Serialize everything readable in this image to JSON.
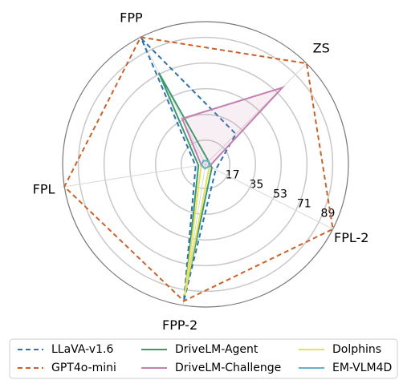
{
  "chart_data": {
    "type": "radar",
    "axes": [
      "FPP",
      "ZS",
      "FPL-2",
      "FPP-2",
      "FPL"
    ],
    "ylim": [
      0,
      100
    ],
    "yticks": [
      17,
      35,
      53,
      71,
      89
    ],
    "grid": true,
    "legend": "bottom",
    "series": [
      {
        "name": "LLaVA-v1.6",
        "color": "#2a72b0",
        "linestyle": "dashed",
        "fill": false,
        "values": [
          99,
          30,
          8,
          97,
          7
        ]
      },
      {
        "name": "GPT4o-mini",
        "color": "#c8622a",
        "linestyle": "dashed",
        "fill": false,
        "values": [
          100,
          100,
          100,
          97,
          100
        ]
      },
      {
        "name": "DriveLM-Agent",
        "color": "#3a9a6e",
        "linestyle": "solid",
        "fill": false,
        "values": [
          72,
          3,
          5,
          92,
          5
        ]
      },
      {
        "name": "DriveLM-Challenge",
        "color": "#c47fb0",
        "linestyle": "solid",
        "fill": true,
        "values": [
          36,
          76,
          3,
          3,
          3
        ]
      },
      {
        "name": "Dolphins",
        "color": "#e6e15a",
        "linestyle": "solid",
        "fill": false,
        "values": [
          3,
          3,
          3,
          93,
          3
        ]
      },
      {
        "name": "EM-VLM4D",
        "color": "#62b3c4",
        "linestyle": "solid",
        "fill": false,
        "values": [
          3,
          3,
          3,
          3,
          3
        ]
      }
    ]
  }
}
